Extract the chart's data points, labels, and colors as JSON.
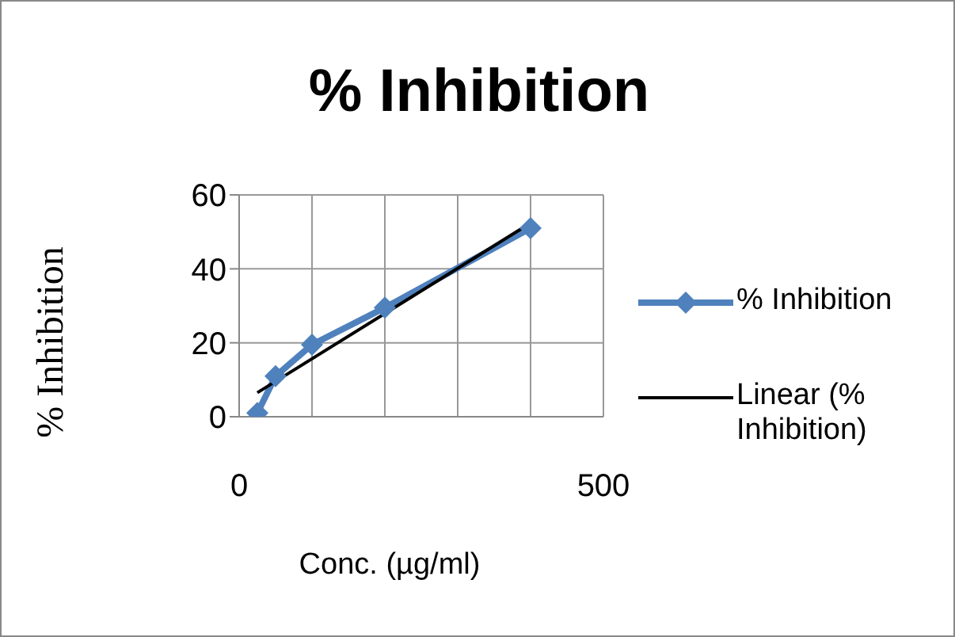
{
  "chart_data": {
    "type": "line",
    "title": "% Inhibition",
    "xlabel": "Conc. (µg/ml)",
    "ylabel": "% Inhibition",
    "xlim": [
      0,
      500
    ],
    "xticks": [
      0,
      {
        "value": 100,
        "label": null
      },
      {
        "value": 200,
        "label": null
      },
      {
        "value": 300,
        "label": null
      },
      {
        "value": 400,
        "label": null
      },
      500
    ],
    "ylim": [
      0,
      60
    ],
    "yticks": [
      0,
      20,
      40,
      60
    ],
    "grid": true,
    "legend": "right",
    "series": [
      {
        "name": "% Inhibition",
        "color": "#4f81bd",
        "x": [
          25,
          50,
          100,
          200,
          400
        ],
        "values": [
          1,
          11,
          19.5,
          29.5,
          51
        ],
        "marker": "diamond"
      },
      {
        "name": "Linear (% Inhibition)",
        "type": "line",
        "color": "#000000",
        "x": [
          25,
          400
        ],
        "values": [
          6.5,
          52.4
        ],
        "marker": "none"
      }
    ]
  }
}
